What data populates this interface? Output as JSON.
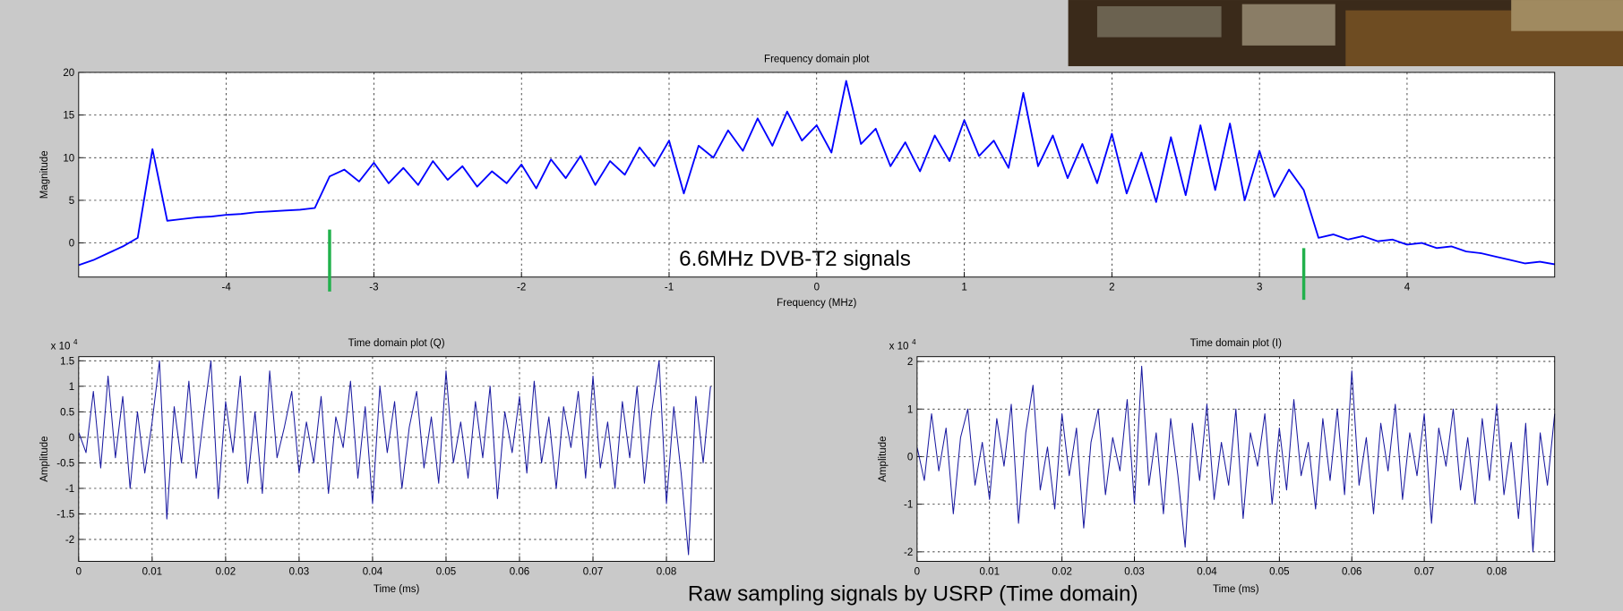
{
  "chart_data": [
    {
      "type": "line",
      "title": "Frequency domain plot",
      "x_label": "Frequency (MHz)",
      "y_label": "Magnitude",
      "x": [
        -5.0,
        -4.9,
        -4.8,
        -4.7,
        -4.6,
        -4.5,
        -4.4,
        -4.3,
        -4.2,
        -4.1,
        -4.0,
        -3.9,
        -3.8,
        -3.7,
        -3.6,
        -3.5,
        -3.4,
        -3.3,
        -3.2,
        -3.1,
        -3.0,
        -2.9,
        -2.8,
        -2.7,
        -2.6,
        -2.5,
        -2.4,
        -2.3,
        -2.2,
        -2.1,
        -2.0,
        -1.9,
        -1.8,
        -1.7,
        -1.6,
        -1.5,
        -1.4,
        -1.3,
        -1.2,
        -1.1,
        -1.0,
        -0.9,
        -0.8,
        -0.7,
        -0.6,
        -0.5,
        -0.4,
        -0.3,
        -0.2,
        -0.1,
        0.0,
        0.1,
        0.2,
        0.3,
        0.4,
        0.5,
        0.6,
        0.7,
        0.8,
        0.9,
        1.0,
        1.1,
        1.2,
        1.3,
        1.4,
        1.5,
        1.6,
        1.7,
        1.8,
        1.9,
        2.0,
        2.1,
        2.2,
        2.3,
        2.4,
        2.5,
        2.6,
        2.7,
        2.8,
        2.9,
        3.0,
        3.1,
        3.2,
        3.3,
        3.4,
        3.5,
        3.6,
        3.7,
        3.8,
        3.9,
        4.0,
        4.1,
        4.2,
        4.3,
        4.4,
        4.5,
        4.6,
        4.7,
        4.8,
        4.9,
        5.0
      ],
      "series": [
        {
          "color": "#0000ff",
          "values": [
            -2.6,
            -2.0,
            -1.2,
            -0.4,
            0.6,
            11.0,
            2.6,
            2.8,
            3.0,
            3.1,
            3.3,
            3.4,
            3.6,
            3.7,
            3.8,
            3.9,
            4.1,
            7.8,
            8.6,
            7.2,
            9.4,
            7.0,
            8.8,
            6.8,
            9.6,
            7.4,
            9.0,
            6.6,
            8.4,
            7.0,
            9.2,
            6.4,
            9.8,
            7.6,
            10.2,
            6.8,
            9.6,
            8.0,
            11.2,
            9.0,
            12.0,
            5.8,
            11.4,
            10.0,
            13.2,
            10.8,
            14.6,
            11.4,
            15.4,
            12.0,
            13.8,
            10.6,
            19.0,
            11.6,
            13.4,
            9.0,
            11.8,
            8.4,
            12.6,
            9.6,
            14.4,
            10.2,
            12.0,
            8.8,
            17.6,
            9.0,
            12.6,
            7.6,
            11.6,
            7.0,
            12.8,
            5.8,
            10.6,
            4.8,
            12.4,
            5.6,
            13.8,
            6.2,
            14.0,
            5.0,
            10.8,
            5.4,
            8.6,
            6.2,
            0.6,
            1.0,
            0.4,
            0.8,
            0.2,
            0.4,
            -0.2,
            0.0,
            -0.6,
            -0.4,
            -1.0,
            -1.2,
            -1.6,
            -2.0,
            -2.4,
            -2.2,
            -2.5
          ]
        }
      ],
      "xlim": [
        -5,
        5
      ],
      "xticks": [
        -4,
        -3,
        -2,
        -1,
        0,
        1,
        2,
        3,
        4
      ],
      "ylim": [
        -4,
        20
      ],
      "yticks": [
        0,
        5,
        10,
        15,
        20
      ],
      "grid": true,
      "annotation": "6.6MHz DVB-T2 signals",
      "markers": {
        "x": [
          -3.3,
          3.3
        ],
        "color": "#22b14c"
      }
    },
    {
      "type": "line",
      "title": "Time domain plot (Q)",
      "x_label": "Time (ms)",
      "y_label": "Amplitude",
      "y_scale_label": {
        "base": "x 10",
        "exponent": "4"
      },
      "x": [
        0,
        0.001,
        0.002,
        0.003,
        0.004,
        0.005,
        0.006,
        0.007,
        0.008,
        0.009,
        0.01,
        0.011,
        0.012,
        0.013,
        0.014,
        0.015,
        0.016,
        0.017,
        0.018,
        0.019,
        0.02,
        0.021,
        0.022,
        0.023,
        0.024,
        0.025,
        0.026,
        0.027,
        0.028,
        0.029,
        0.03,
        0.031,
        0.032,
        0.033,
        0.034,
        0.035,
        0.036,
        0.037,
        0.038,
        0.039,
        0.04,
        0.041,
        0.042,
        0.043,
        0.044,
        0.045,
        0.046,
        0.047,
        0.048,
        0.049,
        0.05,
        0.051,
        0.052,
        0.053,
        0.054,
        0.055,
        0.056,
        0.057,
        0.058,
        0.059,
        0.06,
        0.061,
        0.062,
        0.063,
        0.064,
        0.065,
        0.066,
        0.067,
        0.068,
        0.069,
        0.07,
        0.071,
        0.072,
        0.073,
        0.074,
        0.075,
        0.076,
        0.077,
        0.078,
        0.079,
        0.08,
        0.081,
        0.082,
        0.083,
        0.084,
        0.085,
        0.086
      ],
      "series": [
        {
          "color": "#1a1aa0",
          "values": [
            0.1,
            -0.3,
            0.9,
            -0.6,
            1.2,
            -0.4,
            0.8,
            -1.0,
            0.5,
            -0.7,
            0.3,
            1.5,
            -1.6,
            0.6,
            -0.5,
            1.1,
            -0.8,
            0.4,
            1.5,
            -1.2,
            0.7,
            -0.3,
            1.2,
            -0.9,
            0.5,
            -1.1,
            1.3,
            -0.4,
            0.2,
            0.9,
            -0.7,
            0.3,
            -0.5,
            0.8,
            -1.1,
            0.4,
            -0.2,
            1.1,
            -0.8,
            0.6,
            -1.3,
            1.0,
            -0.3,
            0.7,
            -1.0,
            0.2,
            0.9,
            -0.6,
            0.4,
            -0.9,
            1.3,
            -0.5,
            0.3,
            -0.8,
            0.7,
            -0.4,
            1.0,
            -1.2,
            0.5,
            -0.3,
            0.8,
            -0.7,
            1.1,
            -0.5,
            0.4,
            -1.0,
            0.6,
            -0.2,
            0.9,
            -0.8,
            1.2,
            -0.6,
            0.3,
            -1.0,
            0.7,
            -0.4,
            1.0,
            -0.9,
            0.5,
            1.5,
            -1.3,
            0.6,
            -0.7,
            -2.3,
            0.8,
            -0.5,
            1.0
          ]
        }
      ],
      "xlim": [
        0,
        0.0865
      ],
      "xticks": [
        0,
        0.01,
        0.02,
        0.03,
        0.04,
        0.05,
        0.06,
        0.07,
        0.08
      ],
      "ylim": [
        -2.43,
        1.58
      ],
      "yticks": [
        -2,
        -1.5,
        -1,
        -0.5,
        0,
        0.5,
        1,
        1.5
      ],
      "grid": true
    },
    {
      "type": "line",
      "title": "Time domain plot (I)",
      "x_label": "Time (ms)",
      "y_label": "Amplitude",
      "y_scale_label": {
        "base": "x 10",
        "exponent": "4"
      },
      "x": [
        0,
        0.001,
        0.002,
        0.003,
        0.004,
        0.005,
        0.006,
        0.007,
        0.008,
        0.009,
        0.01,
        0.011,
        0.012,
        0.013,
        0.014,
        0.015,
        0.016,
        0.017,
        0.018,
        0.019,
        0.02,
        0.021,
        0.022,
        0.023,
        0.024,
        0.025,
        0.026,
        0.027,
        0.028,
        0.029,
        0.03,
        0.031,
        0.032,
        0.033,
        0.034,
        0.035,
        0.036,
        0.037,
        0.038,
        0.039,
        0.04,
        0.041,
        0.042,
        0.043,
        0.044,
        0.045,
        0.046,
        0.047,
        0.048,
        0.049,
        0.05,
        0.051,
        0.052,
        0.053,
        0.054,
        0.055,
        0.056,
        0.057,
        0.058,
        0.059,
        0.06,
        0.061,
        0.062,
        0.063,
        0.064,
        0.065,
        0.066,
        0.067,
        0.068,
        0.069,
        0.07,
        0.071,
        0.072,
        0.073,
        0.074,
        0.075,
        0.076,
        0.077,
        0.078,
        0.079,
        0.08,
        0.081,
        0.082,
        0.083,
        0.084,
        0.085,
        0.086,
        0.087,
        0.088
      ],
      "series": [
        {
          "color": "#1a1aa0",
          "values": [
            0.2,
            -0.5,
            0.9,
            -0.3,
            0.6,
            -1.2,
            0.4,
            1.0,
            -0.6,
            0.3,
            -0.9,
            0.8,
            -0.2,
            1.1,
            -1.4,
            0.5,
            1.5,
            -0.7,
            0.2,
            -1.1,
            0.9,
            -0.4,
            0.6,
            -1.5,
            0.3,
            1.0,
            -0.8,
            0.4,
            -0.3,
            1.2,
            -1.0,
            1.9,
            -0.6,
            0.5,
            -1.2,
            0.8,
            -0.4,
            -1.9,
            0.7,
            -0.5,
            1.1,
            -0.9,
            0.3,
            -0.6,
            1.0,
            -1.3,
            0.5,
            -0.2,
            0.9,
            -1.0,
            0.6,
            -0.7,
            1.2,
            -0.4,
            0.3,
            -1.1,
            0.8,
            -0.5,
            1.0,
            -0.8,
            1.8,
            -0.6,
            0.4,
            -1.2,
            0.7,
            -0.3,
            1.1,
            -0.9,
            0.5,
            -0.4,
            0.9,
            -1.4,
            0.6,
            -0.2,
            1.0,
            -0.7,
            0.4,
            -1.0,
            0.8,
            -0.5,
            1.1,
            -0.8,
            0.3,
            -1.3,
            0.7,
            -2.0,
            0.5,
            -0.6,
            0.9
          ]
        }
      ],
      "xlim": [
        0,
        0.088
      ],
      "xticks": [
        0,
        0.01,
        0.02,
        0.03,
        0.04,
        0.05,
        0.06,
        0.07,
        0.08
      ],
      "ylim": [
        -2.2,
        2.1
      ],
      "yticks": [
        -2,
        -1,
        0,
        1,
        2
      ],
      "grid": true
    }
  ],
  "caption": "Raw sampling signals by USRP (Time domain)"
}
